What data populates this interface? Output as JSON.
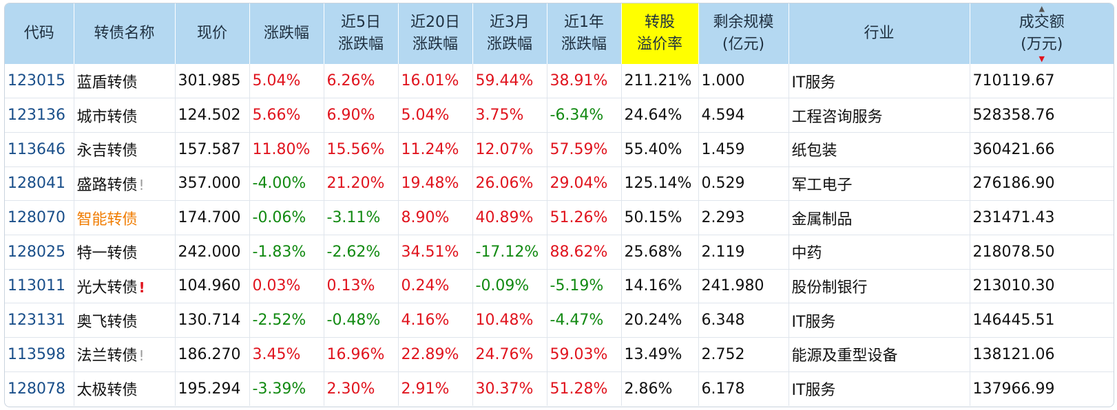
{
  "headers": [
    {
      "l1": "代码",
      "l2": ""
    },
    {
      "l1": "转债名称",
      "l2": ""
    },
    {
      "l1": "现价",
      "l2": ""
    },
    {
      "l1": "涨跌幅",
      "l2": ""
    },
    {
      "l1": "近5日",
      "l2": "涨跌幅"
    },
    {
      "l1": "近20日",
      "l2": "涨跌幅"
    },
    {
      "l1": "近3月",
      "l2": "涨跌幅"
    },
    {
      "l1": "近1年",
      "l2": "涨跌幅"
    },
    {
      "l1": "转股",
      "l2": "溢价率"
    },
    {
      "l1": "剩余规模",
      "l2": "(亿元)"
    },
    {
      "l1": "行业",
      "l2": ""
    },
    {
      "l1": "成交额",
      "l2": "(万元)"
    }
  ],
  "sort": {
    "up_icon": "triangle-up-icon",
    "down_icon": "triangle-down-icon",
    "active_color": "#e0141e"
  },
  "colors": {
    "up": "#e0141e",
    "down": "#128a12",
    "header_bg": "#b4d8f1",
    "highlight_header": "#ffff00",
    "code_link": "#1a4f8a",
    "name_highlight": "#f07c00"
  },
  "rows": [
    {
      "code": "123015",
      "name": "蓝盾转债",
      "flag": "",
      "name_style": "",
      "price": "301.985",
      "chg": "5.04%",
      "d5": "6.26%",
      "d20": "16.01%",
      "m3": "59.44%",
      "y1": "38.91%",
      "premium": "211.21%",
      "remain": "1.000",
      "industry": "IT服务",
      "turnover": "710119.67"
    },
    {
      "code": "123136",
      "name": "城市转债",
      "flag": "",
      "name_style": "",
      "price": "124.502",
      "chg": "5.66%",
      "d5": "6.90%",
      "d20": "5.04%",
      "m3": "3.75%",
      "y1": "-6.34%",
      "premium": "24.64%",
      "remain": "4.594",
      "industry": "工程咨询服务",
      "turnover": "528358.76"
    },
    {
      "code": "113646",
      "name": "永吉转债",
      "flag": "",
      "name_style": "",
      "price": "157.587",
      "chg": "11.80%",
      "d5": "15.56%",
      "d20": "11.24%",
      "m3": "12.07%",
      "y1": "57.59%",
      "premium": "55.40%",
      "remain": "1.459",
      "industry": "纸包装",
      "turnover": "360421.66"
    },
    {
      "code": "128041",
      "name": "盛路转债",
      "flag": "!",
      "flag_style": "gray",
      "name_style": "",
      "price": "357.000",
      "chg": "-4.00%",
      "d5": "21.20%",
      "d20": "19.48%",
      "m3": "26.06%",
      "y1": "29.04%",
      "premium": "125.14%",
      "remain": "0.529",
      "industry": "军工电子",
      "turnover": "276186.90"
    },
    {
      "code": "128070",
      "name": "智能转债",
      "flag": "",
      "name_style": "highlight",
      "price": "174.700",
      "chg": "-0.06%",
      "d5": "-3.11%",
      "d20": "8.90%",
      "m3": "40.89%",
      "y1": "51.26%",
      "premium": "50.15%",
      "remain": "2.293",
      "industry": "金属制品",
      "turnover": "231471.43"
    },
    {
      "code": "128025",
      "name": "特一转债",
      "flag": "",
      "name_style": "",
      "price": "242.000",
      "chg": "-1.83%",
      "d5": "-2.62%",
      "d20": "34.51%",
      "m3": "-17.12%",
      "y1": "88.62%",
      "premium": "25.68%",
      "remain": "2.119",
      "industry": "中药",
      "turnover": "218078.50"
    },
    {
      "code": "113011",
      "name": "光大转债",
      "flag": "!",
      "flag_style": "red",
      "name_style": "",
      "price": "104.960",
      "chg": "0.03%",
      "d5": "0.13%",
      "d20": "0.24%",
      "m3": "-0.09%",
      "y1": "-5.19%",
      "premium": "14.16%",
      "remain": "241.980",
      "industry": "股份制银行",
      "turnover": "213010.30"
    },
    {
      "code": "123131",
      "name": "奥飞转债",
      "flag": "",
      "name_style": "",
      "price": "130.714",
      "chg": "-2.52%",
      "d5": "-0.48%",
      "d20": "4.16%",
      "m3": "10.48%",
      "y1": "-4.47%",
      "premium": "20.24%",
      "remain": "6.348",
      "industry": "IT服务",
      "turnover": "146445.51"
    },
    {
      "code": "113598",
      "name": "法兰转债",
      "flag": "!",
      "flag_style": "gray",
      "name_style": "",
      "price": "186.270",
      "chg": "3.45%",
      "d5": "16.96%",
      "d20": "22.89%",
      "m3": "24.76%",
      "y1": "59.03%",
      "premium": "13.49%",
      "remain": "2.752",
      "industry": "能源及重型设备",
      "turnover": "138121.06"
    },
    {
      "code": "128078",
      "name": "太极转债",
      "flag": "",
      "name_style": "",
      "price": "195.294",
      "chg": "-3.39%",
      "d5": "2.30%",
      "d20": "2.91%",
      "m3": "30.37%",
      "y1": "51.28%",
      "premium": "2.86%",
      "remain": "6.178",
      "industry": "IT服务",
      "turnover": "137966.99"
    }
  ]
}
